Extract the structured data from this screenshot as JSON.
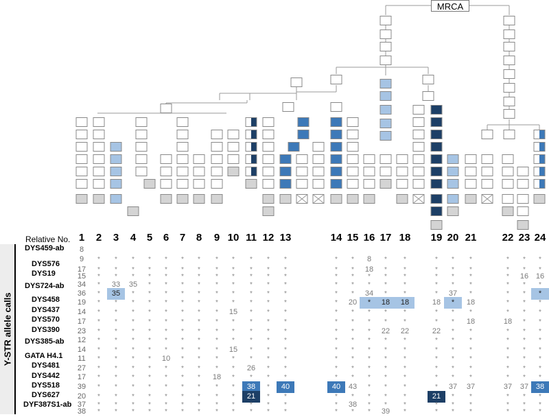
{
  "mrca": {
    "label": "MRCA"
  },
  "relatives": {
    "header": "Relative No.",
    "numbers": [
      "1",
      "2",
      "3",
      "4",
      "5",
      "6",
      "7",
      "8",
      "9",
      "10",
      "11",
      "12",
      "13",
      "14",
      "15",
      "16",
      "17",
      "18",
      "19",
      "20",
      "21",
      "22",
      "23",
      "24"
    ]
  },
  "side_label": "Y-STR allele calls",
  "colors": {
    "none": "#ffffff",
    "gray": "#d4d4d4",
    "light": "#a6c4e4",
    "mid": "#3d79b8",
    "dark": "#1d3f66"
  },
  "loci": [
    {
      "name": "DYS459-ab"
    },
    {
      "name": "DYS576"
    },
    {
      "name": "DYS19"
    },
    {
      "name": "DYS724-ab"
    },
    {
      "name": "DYS458"
    },
    {
      "name": "DYS437"
    },
    {
      "name": "DYS570"
    },
    {
      "name": "DYS390"
    },
    {
      "name": "DYS385-ab"
    },
    {
      "name": "GATA H4.1"
    },
    {
      "name": "DYS481"
    },
    {
      "name": "DYS442"
    },
    {
      "name": "DYS518"
    },
    {
      "name": "DYS627"
    },
    {
      "name": "DYF387S1-ab"
    }
  ],
  "allele_rows": [
    {
      "base": "8",
      "calls": [
        "",
        "",
        "",
        "",
        "",
        "",
        "",
        "",
        "",
        "",
        "",
        "",
        "",
        "",
        "",
        "",
        "",
        "",
        "",
        "",
        "",
        "",
        "",
        ""
      ]
    },
    {
      "base": "9",
      "calls": [
        "*",
        "*",
        "*",
        "*",
        "*",
        "*",
        "*",
        "*",
        "*",
        "*",
        "*",
        "*",
        "*",
        "*",
        "8",
        "*",
        "*",
        "*",
        "*",
        "*",
        "*",
        "*",
        "*",
        "*"
      ]
    },
    {
      "base": "17",
      "calls": [
        "*",
        "*",
        "*",
        "*",
        "*",
        "*",
        "*",
        "*",
        "*",
        "*",
        "*",
        "*",
        "*",
        "*",
        "18",
        "*",
        "*",
        "*",
        "*",
        "*",
        "*",
        "*",
        "*",
        "*"
      ]
    },
    {
      "base": "15",
      "calls": [
        "*",
        "*",
        "*",
        "*",
        "*",
        "*",
        "*",
        "*",
        "*",
        "*",
        "*",
        "*",
        "*",
        "*",
        "*",
        "*",
        "*",
        "*",
        "*",
        "*",
        "*",
        "16",
        "16",
        "*"
      ]
    },
    {
      "base": "34",
      "calls": [
        "*",
        "33",
        "35",
        "*",
        "*",
        "*",
        "*",
        "*",
        "*",
        "*",
        "*",
        "*",
        "*",
        "*",
        "*",
        "*",
        "*",
        "*",
        "*",
        "*",
        "*",
        "*",
        "*",
        "*"
      ]
    },
    {
      "base": "36",
      "calls": [
        "*",
        "35",
        "*",
        "*",
        "*",
        "*",
        "*",
        "*",
        "*",
        "*",
        "*",
        "*",
        "*",
        "*",
        "34",
        "*",
        "*",
        "*",
        "37",
        "*",
        "*",
        "*",
        "*",
        "35"
      ]
    },
    {
      "base": "19",
      "calls": [
        "*",
        "*",
        "*",
        "*",
        "*",
        "*",
        "*",
        "*",
        "*",
        "*",
        "*",
        "*",
        "*",
        "20",
        "*",
        "18",
        "18",
        "18",
        "*",
        "18",
        "*",
        "*",
        "*",
        "*"
      ]
    },
    {
      "base": "14",
      "calls": [
        "*",
        "*",
        "*",
        "*",
        "*",
        "*",
        "*",
        "*",
        "15",
        "*",
        "*",
        "*",
        "*",
        "*",
        "*",
        "*",
        "*",
        "*",
        "*",
        "*",
        "*",
        "*",
        "*",
        "*"
      ]
    },
    {
      "base": "17",
      "calls": [
        "*",
        "*",
        "*",
        "*",
        "*",
        "*",
        "*",
        "*",
        "*",
        "*",
        "*",
        "*",
        "*",
        "*",
        "*",
        "*",
        "*",
        "*",
        "*",
        "18",
        "18",
        "*",
        "*",
        "*"
      ]
    },
    {
      "base": "23",
      "calls": [
        "*",
        "*",
        "*",
        "*",
        "*",
        "*",
        "*",
        "*",
        "*",
        "*",
        "*",
        "*",
        "*",
        "*",
        "*",
        "22",
        "22",
        "22",
        "*",
        "*",
        "*",
        "*",
        "*",
        "*"
      ]
    },
    {
      "base": "12",
      "calls": [
        "*",
        "*",
        "*",
        "*",
        "*",
        "*",
        "*",
        "*",
        "*",
        "*",
        "*",
        "*",
        "*",
        "*",
        "*",
        "*",
        "*",
        "*",
        "*",
        "*",
        "*",
        "*",
        "*",
        "*"
      ]
    },
    {
      "base": "14",
      "calls": [
        "*",
        "*",
        "*",
        "*",
        "*",
        "*",
        "*",
        "*",
        "15",
        "*",
        "*",
        "*",
        "*",
        "*",
        "*",
        "*",
        "*",
        "*",
        "*",
        "*",
        "*",
        "*",
        "*",
        "*"
      ]
    },
    {
      "base": "11",
      "calls": [
        "*",
        "*",
        "*",
        "*",
        "10",
        "*",
        "*",
        "*",
        "*",
        "*",
        "*",
        "*",
        "*",
        "*",
        "*",
        "*",
        "*",
        "*",
        "*",
        "*",
        "*",
        "*",
        "*",
        "*"
      ]
    },
    {
      "base": "27",
      "calls": [
        "*",
        "*",
        "*",
        "*",
        "*",
        "*",
        "*",
        "*",
        "*",
        "26",
        "*",
        "*",
        "*",
        "*",
        "*",
        "*",
        "*",
        "*",
        "*",
        "*",
        "*",
        "*",
        "*",
        "*"
      ]
    },
    {
      "base": "17",
      "calls": [
        "*",
        "*",
        "*",
        "*",
        "*",
        "*",
        "*",
        "18",
        "*",
        "*",
        "*",
        "*",
        "*",
        "*",
        "*",
        "*",
        "*",
        "*",
        "*",
        "*",
        "*",
        "*",
        "*",
        "*"
      ]
    },
    {
      "base": "39",
      "calls": [
        "*",
        "*",
        "*",
        "*",
        "*",
        "*",
        "*",
        "*",
        "*",
        "38",
        "*",
        "40",
        "40",
        "43",
        "*",
        "*",
        "*",
        "*",
        "37",
        "37",
        "37",
        "37",
        "38",
        "*"
      ]
    },
    {
      "base": "20",
      "calls": [
        "*",
        "*",
        "*",
        "*",
        "*",
        "*",
        "*",
        "*",
        "*",
        "21",
        "*",
        "*",
        "*",
        "*",
        "*",
        "*",
        "*",
        "21",
        "*",
        "*",
        "*",
        "*",
        "*",
        "*"
      ]
    },
    {
      "base": "37",
      "calls": [
        "*",
        "*",
        "*",
        "*",
        "*",
        "*",
        "*",
        "*",
        "*",
        "*",
        "*",
        "*",
        "*",
        "38",
        "*",
        "*",
        "*",
        "*",
        "*",
        "*",
        "*",
        "*",
        "*",
        "*"
      ]
    },
    {
      "base": "38",
      "calls": [
        "*",
        "*",
        "*",
        "*",
        "*",
        "*",
        "*",
        "*",
        "*",
        "*",
        "*",
        "*",
        "*",
        "*",
        "*",
        "39",
        "*",
        "*",
        "*",
        "*",
        "*",
        "*",
        "*",
        "*"
      ]
    }
  ]
}
